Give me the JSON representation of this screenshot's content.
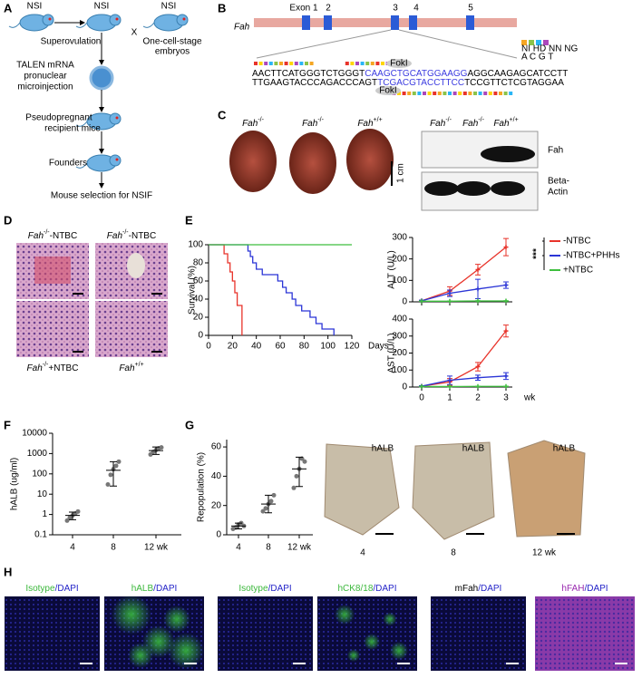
{
  "panel_labels": [
    "A",
    "B",
    "C",
    "D",
    "E",
    "F",
    "G",
    "H"
  ],
  "A": {
    "mice": [
      "NSI",
      "NSI",
      "NSI"
    ],
    "cross": "X",
    "superovulation": "Superovulation",
    "embryos": [
      "One-cell-stage",
      "embryos"
    ],
    "injection": [
      "TALEN mRNA",
      "pronuclear",
      "microinjection"
    ],
    "recipient": [
      "Pseudopregnant",
      "recipient mice"
    ],
    "founders": "Founders",
    "selection": "Mouse selection for NSIF"
  },
  "B": {
    "gene": "Fah",
    "exons": [
      "Exon 1",
      "2",
      "3",
      "4",
      "5"
    ],
    "rvd": "NI HD NN NG",
    "bases": "A C G T",
    "seq_top": [
      "AACTTCATGGGTCTGGGT",
      "CAAGCTGCATGGAAGG",
      "AGGCAAGAGCATCCTT"
    ],
    "seq_bottom": [
      "TTGAAGTACCCAGACCCAGT",
      "TCGACGTACCTTCC",
      "TCCGTTCTCGTAGGAA"
    ],
    "enzyme": "FokI"
  },
  "C": {
    "gene": "Fah",
    "genotypes": [
      "-/-",
      "-/-",
      "+/+"
    ],
    "scale": "1 cm",
    "blot_genotypes": [
      "-/-",
      "-/-",
      "+/+"
    ],
    "bands": [
      "Fah",
      "Beta-",
      "Actin"
    ]
  },
  "D": {
    "gene": "Fah",
    "panels": [
      {
        "genotype": "-/-",
        "treatment": "-NTBC"
      },
      {
        "genotype": "-/-",
        "treatment": "-NTBC"
      },
      {
        "genotype": "-/-",
        "treatment": "+NTBC"
      },
      {
        "genotype": "+/+"
      }
    ]
  },
  "E": {
    "survival": {
      "type": "line",
      "ylabel": "Survival (%)",
      "xlabel": "Days",
      "xlim": [
        0,
        120
      ],
      "xticks": [
        0,
        20,
        40,
        60,
        80,
        100,
        120
      ],
      "ylim": [
        0,
        100
      ],
      "yticks": [
        0,
        20,
        40,
        60,
        80,
        100
      ],
      "series": [
        {
          "name": "-NTBC",
          "color": "#e8332a",
          "x": [
            0,
            13,
            16,
            18,
            20,
            22,
            24,
            28
          ],
          "values": [
            100,
            90,
            80,
            70,
            60,
            47,
            33,
            0
          ]
        },
        {
          "name": "-NTBC+PHHs",
          "color": "#2b35d6",
          "x": [
            0,
            33,
            35,
            37,
            40,
            45,
            58,
            62,
            65,
            70,
            73,
            78,
            85,
            90,
            95,
            105
          ],
          "values": [
            100,
            93,
            87,
            80,
            73,
            67,
            60,
            53,
            47,
            40,
            33,
            27,
            20,
            13,
            7,
            0
          ]
        },
        {
          "name": "+NTBC",
          "color": "#3fbf3f",
          "x": [
            0,
            120
          ],
          "values": [
            100,
            100
          ]
        }
      ]
    },
    "alt": {
      "type": "line",
      "ylabel": "ALT (U/L)",
      "categories": [
        0,
        1,
        2,
        3
      ],
      "ylim": [
        0,
        300
      ],
      "yticks": [
        0,
        100,
        200,
        300
      ],
      "series": [
        {
          "name": "-NTBC",
          "color": "#e8332a",
          "values": [
            5,
            50,
            150,
            255
          ],
          "errors": [
            3,
            20,
            25,
            40
          ]
        },
        {
          "name": "-NTBC+PHHs",
          "color": "#2b35d6",
          "values": [
            5,
            40,
            60,
            78
          ],
          "errors": [
            3,
            15,
            45,
            15
          ]
        },
        {
          "name": "+NTBC",
          "color": "#3fbf3f",
          "values": [
            3,
            3,
            4,
            4
          ],
          "errors": [
            1,
            1,
            1,
            1
          ]
        }
      ]
    },
    "ast": {
      "type": "line",
      "ylabel": "AST (U/L)",
      "categories": [
        0,
        1,
        2,
        3
      ],
      "ylim": [
        0,
        400
      ],
      "yticks": [
        0,
        100,
        200,
        300,
        400
      ],
      "series": [
        {
          "name": "-NTBC",
          "color": "#e8332a",
          "values": [
            5,
            30,
            120,
            330
          ],
          "errors": [
            3,
            20,
            25,
            35
          ]
        },
        {
          "name": "-NTBC+PHHs",
          "color": "#2b35d6",
          "values": [
            5,
            40,
            55,
            65
          ],
          "errors": [
            3,
            25,
            15,
            20
          ]
        },
        {
          "name": "+NTBC",
          "color": "#3fbf3f",
          "values": [
            3,
            3,
            4,
            4
          ],
          "errors": [
            1,
            1,
            1,
            1
          ]
        }
      ]
    },
    "xlabel": "wk",
    "significance": "***"
  },
  "F": {
    "type": "scatter",
    "ylabel": "hALB (ug/ml)",
    "log": true,
    "ylim": [
      0.1,
      10000
    ],
    "yticks": [
      0.1,
      1,
      10,
      100,
      1000,
      10000
    ],
    "categories": [
      "4",
      "8",
      "12 wk"
    ],
    "points": [
      [
        0.5,
        0.7,
        0.9,
        1.1,
        1.4
      ],
      [
        30,
        90,
        170,
        250,
        400
      ],
      [
        900,
        1200,
        1500,
        1800,
        2000
      ]
    ],
    "means": [
      0.9,
      150,
      1400
    ],
    "ranges": [
      [
        0.55,
        1.3
      ],
      [
        25,
        400
      ],
      [
        900,
        2100
      ]
    ]
  },
  "G": {
    "type": "scatter",
    "ylabel": "Repopulation (%)",
    "ylim": [
      0,
      65
    ],
    "yticks": [
      0,
      20,
      40,
      60
    ],
    "categories": [
      "4",
      "8",
      "12 wk"
    ],
    "points": [
      [
        4,
        5,
        7,
        8,
        6
      ],
      [
        16,
        18,
        21,
        23,
        27
      ],
      [
        32,
        40,
        45,
        52,
        50
      ]
    ],
    "means": [
      6,
      21,
      45
    ],
    "ranges": [
      [
        4,
        8
      ],
      [
        15,
        27
      ],
      [
        33,
        53
      ]
    ],
    "image_label": "hALB",
    "image_times": [
      "4",
      "8",
      "12 wk"
    ]
  },
  "H": {
    "labels": [
      [
        "Isotype",
        "/DAPI"
      ],
      [
        "hALB",
        "/DAPI"
      ],
      [
        "Isotype",
        "/DAPI"
      ],
      [
        "hCK8/18",
        "/DAPI"
      ],
      [
        "mFah",
        "/DAPI"
      ],
      [
        "hFAH",
        "/DAPI"
      ]
    ],
    "colors": [
      [
        "#3cb83c",
        "#2424c8"
      ],
      [
        "#3cb83c",
        "#2424c8"
      ],
      [
        "#3cb83c",
        "#2424c8"
      ],
      [
        "#3cb83c",
        "#2424c8"
      ],
      [
        "#000000",
        "#2424c8"
      ],
      [
        "#9a2bb0",
        "#2424c8"
      ]
    ]
  }
}
